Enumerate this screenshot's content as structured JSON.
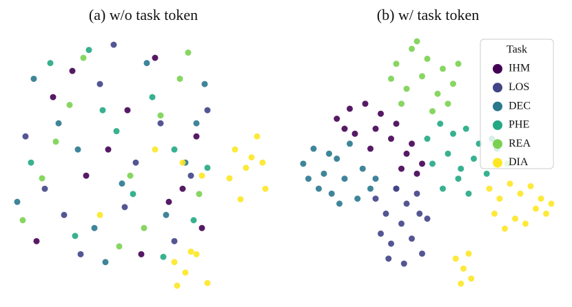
{
  "chart_data": [
    {
      "type": "scatter",
      "title": "(a) w/o task token",
      "series": [
        {
          "color": "#440154",
          "x": [
            12,
            30,
            45,
            60,
            70,
            25,
            50,
            38,
            65,
            18,
            55,
            72
          ],
          "y": [
            20,
            45,
            70,
            35,
            60,
            85,
            15,
            55,
            40,
            75,
            90,
            25
          ]
        },
        {
          "color": "#414487",
          "x": [
            8,
            22,
            35,
            48,
            62,
            74,
            15,
            40,
            57,
            28,
            68,
            44
          ],
          "y": [
            60,
            30,
            80,
            50,
            20,
            70,
            40,
            95,
            65,
            15,
            45,
            33
          ]
        },
        {
          "color": "#2a788e",
          "x": [
            5,
            20,
            33,
            52,
            66,
            73,
            27,
            43,
            59,
            11,
            37,
            70
          ],
          "y": [
            35,
            65,
            25,
            88,
            50,
            80,
            55,
            42,
            30,
            82,
            12,
            65
          ]
        },
        {
          "color": "#22a884",
          "x": [
            10,
            26,
            41,
            54,
            69,
            31,
            47,
            62,
            17,
            58,
            36,
            74
          ],
          "y": [
            50,
            22,
            62,
            75,
            28,
            93,
            38,
            55,
            88,
            14,
            70,
            48
          ]
        },
        {
          "color": "#7ad151",
          "x": [
            7,
            19,
            29,
            46,
            57,
            71,
            24,
            51,
            64,
            14,
            42,
            67
          ],
          "y": [
            28,
            58,
            90,
            45,
            68,
            38,
            72,
            25,
            82,
            44,
            18,
            92
          ]
        },
        {
          "color": "#fde725",
          "x": [
            55,
            65,
            72,
            35,
            84,
            88,
            92,
            95,
            86,
            90,
            82,
            94,
            62,
            66,
            70,
            74,
            68,
            63
          ],
          "y": [
            55,
            50,
            45,
            30,
            55,
            48,
            60,
            40,
            36,
            52,
            44,
            50,
            12,
            8,
            15,
            4,
            16,
            3
          ]
        }
      ]
    },
    {
      "type": "scatter",
      "title": "(b) w/ task token",
      "legend_title": "Task",
      "legend": "upper right",
      "series": [
        {
          "name": "IHM",
          "color": "#440154",
          "x": [
            15,
            20,
            26,
            32,
            38,
            44,
            48,
            22,
            30,
            36,
            42,
            18,
            28,
            40,
            46
          ],
          "y": [
            68,
            72,
            74,
            70,
            66,
            58,
            50,
            62,
            64,
            60,
            54,
            64,
            56,
            48,
            46
          ]
        },
        {
          "name": "LOS",
          "color": "#414487",
          "x": [
            30,
            34,
            38,
            42,
            46,
            50,
            32,
            36,
            40,
            44,
            48,
            35,
            41,
            47,
            38
          ],
          "y": [
            36,
            30,
            40,
            34,
            38,
            28,
            22,
            18,
            26,
            20,
            14,
            12,
            10,
            30,
            40
          ]
        },
        {
          "name": "DEC",
          "color": "#2a788e",
          "x": [
            2,
            6,
            10,
            15,
            20,
            25,
            30,
            8,
            13,
            18,
            23,
            4,
            12,
            28,
            16
          ],
          "y": [
            50,
            56,
            46,
            52,
            58,
            48,
            44,
            40,
            38,
            44,
            36,
            44,
            54,
            40,
            34
          ]
        },
        {
          "name": "PHE",
          "color": "#22a884",
          "x": [
            50,
            55,
            60,
            65,
            70,
            75,
            52,
            58,
            63,
            68,
            73,
            56,
            66,
            62,
            77
          ],
          "y": [
            60,
            66,
            62,
            64,
            58,
            60,
            50,
            54,
            48,
            52,
            46,
            40,
            38,
            44,
            56
          ]
        },
        {
          "name": "REA",
          "color": "#7ad151",
          "x": [
            38,
            44,
            50,
            56,
            60,
            42,
            48,
            54,
            40,
            58,
            46,
            52,
            36,
            62,
            81
          ],
          "y": [
            90,
            96,
            92,
            88,
            82,
            80,
            85,
            78,
            74,
            74,
            99,
            71,
            84,
            90,
            50
          ]
        },
        {
          "name": "DIA",
          "color": "#fde725",
          "x": [
            74,
            78,
            82,
            86,
            90,
            94,
            98,
            76,
            84,
            92,
            88,
            80,
            96,
            61,
            64,
            67,
            63,
            66
          ],
          "y": [
            40,
            36,
            42,
            38,
            41,
            36,
            34,
            30,
            28,
            32,
            26,
            24,
            30,
            12,
            8,
            4,
            2,
            14
          ]
        }
      ]
    }
  ]
}
